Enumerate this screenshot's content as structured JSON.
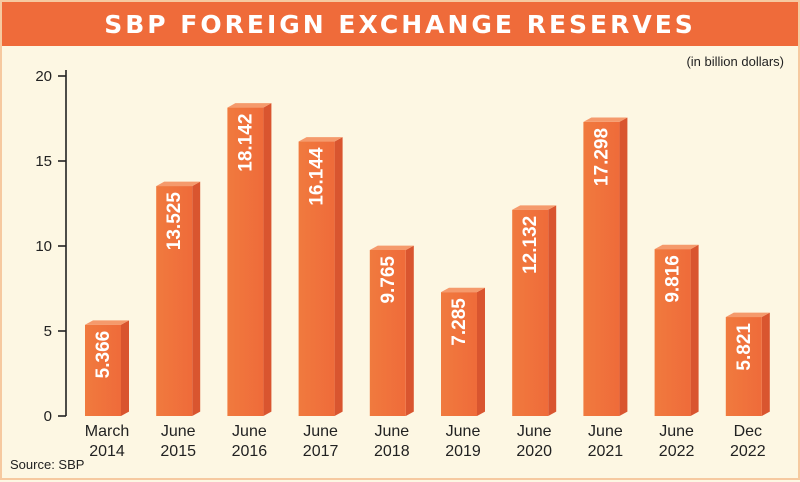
{
  "header": {
    "title": "SBP FOREIGN EXCHANGE RESERVES"
  },
  "unit_note": "(in billion dollars)",
  "source": "Source: SBP",
  "colors": {
    "title_bg": "#ef6b3a",
    "bar_front": "#ef6b3a",
    "bar_front_light": "#f07a3e",
    "bar_side": "#d9552f",
    "bar_top": "#f59a6c",
    "background": "#fdf7e3"
  },
  "chart_data": {
    "type": "bar",
    "title": "SBP FOREIGN EXCHANGE RESERVES",
    "ylabel": "(in billion dollars)",
    "xlabel": "",
    "ylim": [
      0,
      20
    ],
    "yticks": [
      0,
      5,
      10,
      15,
      20
    ],
    "grid": false,
    "categories": [
      [
        "March",
        "2014"
      ],
      [
        "June",
        "2015"
      ],
      [
        "June",
        "2016"
      ],
      [
        "June",
        "2017"
      ],
      [
        "June",
        "2018"
      ],
      [
        "June",
        "2019"
      ],
      [
        "June",
        "2020"
      ],
      [
        "June",
        "2021"
      ],
      [
        "June",
        "2022"
      ],
      [
        "Dec",
        "2022"
      ]
    ],
    "values": [
      5.366,
      13.525,
      18.142,
      16.144,
      9.765,
      7.285,
      12.132,
      17.298,
      9.816,
      5.821
    ],
    "value_labels": [
      "5.366",
      "13.525",
      "18.142",
      "16.144",
      "9.765",
      "7.285",
      "12.132",
      "17.298",
      "9.816",
      "5.821"
    ]
  }
}
